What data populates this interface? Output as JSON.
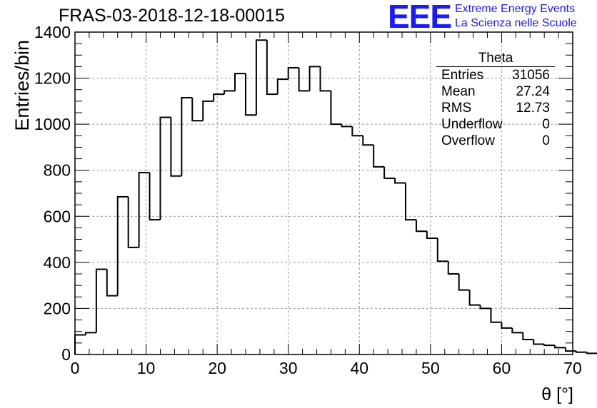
{
  "title": "FRAS-03-2018-12-18-00015",
  "logo": {
    "mark": "EEE",
    "line1": "Extreme Energy Events",
    "line2": "La Scienza nelle Scuole"
  },
  "stats": {
    "title": "Theta",
    "rows": [
      {
        "label": "Entries",
        "value": "31056"
      },
      {
        "label": "Mean",
        "value": "27.24"
      },
      {
        "label": "RMS",
        "value": "12.73"
      },
      {
        "label": "Underflow",
        "value": "0"
      },
      {
        "label": "Overflow",
        "value": "0"
      }
    ]
  },
  "chart_data": {
    "type": "bar",
    "style": "histogram-step",
    "title": "FRAS-03-2018-12-18-00015",
    "xlabel": "θ [°]",
    "ylabel": "Entries/bin",
    "xlim": [
      0,
      70
    ],
    "ylim": [
      0,
      1400
    ],
    "bin_width": 1.5,
    "x_ticks": [
      0,
      10,
      20,
      30,
      40,
      50,
      60,
      70
    ],
    "y_ticks": [
      0,
      200,
      400,
      600,
      800,
      1000,
      1200,
      1400
    ],
    "grid": true,
    "values": [
      85,
      95,
      370,
      255,
      685,
      465,
      790,
      585,
      1030,
      775,
      1115,
      1015,
      1100,
      1130,
      1145,
      1220,
      1040,
      1365,
      1130,
      1195,
      1245,
      1145,
      1250,
      1145,
      1000,
      990,
      950,
      910,
      815,
      765,
      745,
      585,
      535,
      505,
      405,
      350,
      280,
      215,
      200,
      140,
      115,
      95,
      65,
      45,
      40,
      30,
      15,
      10,
      5,
      2
    ]
  }
}
